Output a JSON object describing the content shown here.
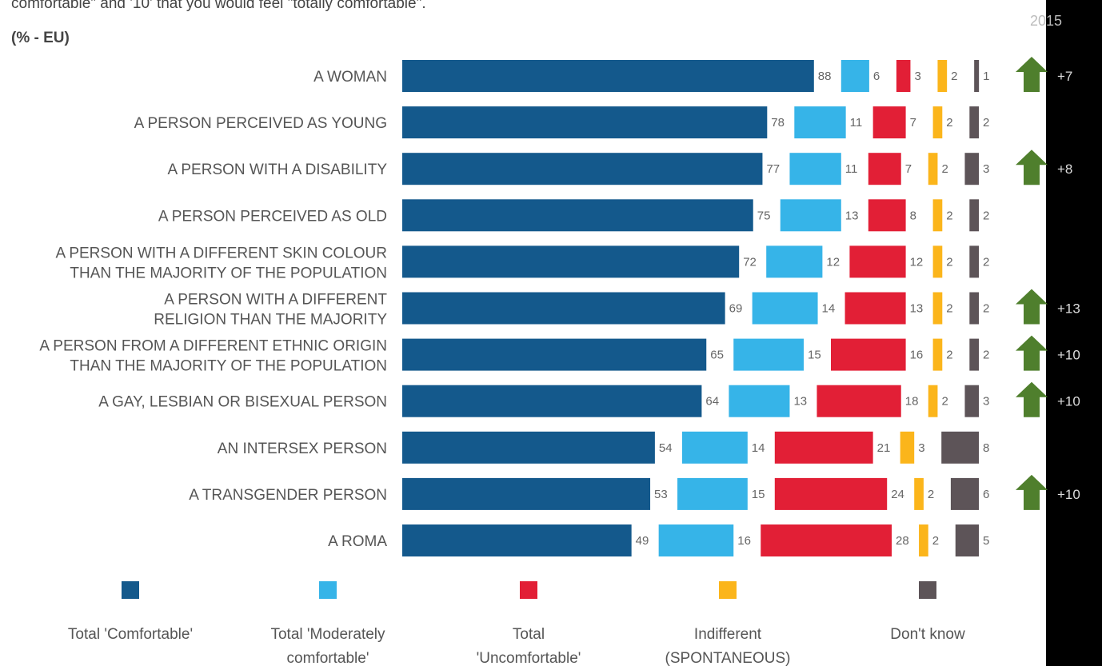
{
  "header": {
    "intro_line": "comfortable\" and '10' that you would feel \"totally comfortable\".",
    "unit_label": "(% - EU)",
    "year_label": "2015"
  },
  "colors": {
    "comfortable": "#14598C",
    "moderately_comfortable": "#36B4E8",
    "uncomfortable": "#E21F36",
    "indifferent": "#FBB51B",
    "dont_know": "#5D5458",
    "trend_arrow": "#4F7F2D",
    "right_strip": "#000000"
  },
  "chart_data": {
    "type": "bar",
    "orientation": "horizontal",
    "stacked_segments": true,
    "categories": [
      [
        "A WOMAN"
      ],
      [
        "A PERSON PERCEIVED AS YOUNG"
      ],
      [
        "A PERSON WITH A DISABILITY"
      ],
      [
        "A PERSON PERCEIVED AS OLD"
      ],
      [
        "A PERSON WITH A DIFFERENT SKIN COLOUR",
        "THAN THE MAJORITY OF THE POPULATION"
      ],
      [
        "A PERSON WITH A DIFFERENT",
        "RELIGION THAN THE MAJORITY"
      ],
      [
        "A PERSON FROM A DIFFERENT ETHNIC ORIGIN",
        "THAN THE MAJORITY OF THE POPULATION"
      ],
      [
        "A GAY, LESBIAN OR BISEXUAL PERSON"
      ],
      [
        "AN INTERSEX PERSON"
      ],
      [
        "A TRANSGENDER PERSON"
      ],
      [
        "A ROMA"
      ]
    ],
    "series": [
      {
        "name": "Total 'Comfortable'",
        "values": [
          88,
          78,
          77,
          75,
          72,
          69,
          65,
          64,
          54,
          53,
          49
        ]
      },
      {
        "name": "Total 'Moderately comfortable'",
        "values": [
          6,
          11,
          11,
          13,
          12,
          14,
          15,
          13,
          14,
          15,
          16
        ]
      },
      {
        "name": "Total 'Uncomfortable'",
        "values": [
          3,
          7,
          7,
          8,
          12,
          13,
          16,
          18,
          21,
          24,
          28
        ]
      },
      {
        "name": "Indifferent (SPONTANEOUS)",
        "values": [
          2,
          2,
          2,
          2,
          2,
          2,
          2,
          2,
          3,
          2,
          2
        ]
      },
      {
        "name": "Don't know",
        "values": [
          1,
          2,
          3,
          2,
          2,
          2,
          2,
          3,
          8,
          6,
          5
        ]
      }
    ],
    "trend_vs": "2015",
    "trend": [
      "+7",
      "",
      "+8",
      "",
      "",
      "+13",
      "+10",
      "+10",
      "",
      "+10",
      ""
    ],
    "legend": [
      [
        "Total 'Comfortable'"
      ],
      [
        "Total 'Moderately",
        "comfortable'"
      ],
      [
        "Total",
        "'Uncomfortable'"
      ],
      [
        "Indifferent",
        "(SPONTANEOUS)"
      ],
      [
        "Don't know"
      ]
    ],
    "legend_position": "bottom"
  }
}
